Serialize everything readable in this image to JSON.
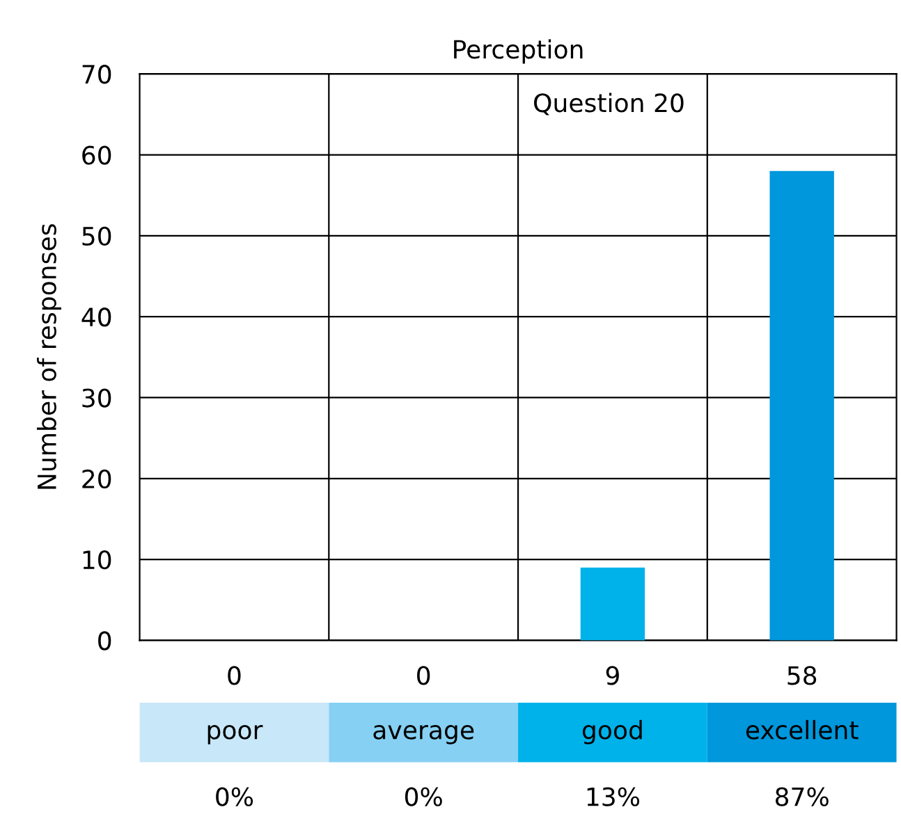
{
  "chart_data": {
    "type": "bar",
    "title": "Perception",
    "subtitle": "Question 20",
    "ylabel": "Number of responses",
    "categories": [
      "poor",
      "average",
      "good",
      "excellent"
    ],
    "values": [
      0,
      0,
      9,
      58
    ],
    "colors": [
      "#c8e7f8",
      "#86d0f4",
      "#00b2ea",
      "#0097dc"
    ],
    "data_labels": true,
    "annotations": [
      "0%",
      "0%",
      "13%",
      "87%"
    ],
    "ylim": [
      0,
      70
    ],
    "yticks": [
      0,
      10,
      20,
      30,
      40,
      50,
      60,
      70
    ],
    "grid": true
  }
}
